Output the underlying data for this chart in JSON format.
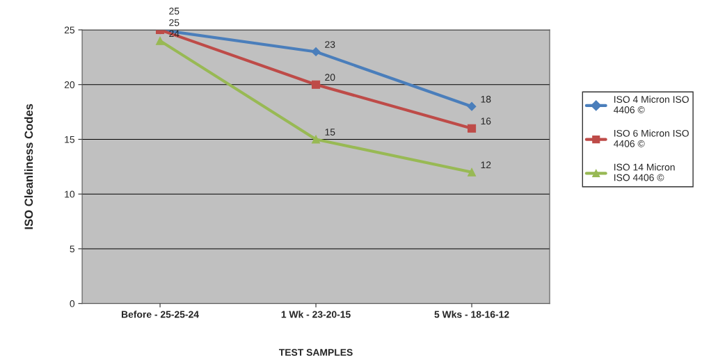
{
  "chart_data": {
    "type": "line",
    "xlabel": "TEST SAMPLES",
    "ylabel": "ISO Cleanliness Codes",
    "categories": [
      "Before - 25-25-24",
      "1 Wk - 23-20-15",
      "5 Wks - 18-16-12"
    ],
    "series": [
      {
        "name": "ISO 4 Micron ISO 4406 ©",
        "color": "#4a7ebb",
        "marker": "diamond",
        "values": [
          25,
          23,
          18
        ]
      },
      {
        "name": "ISO 6 Micron ISO 4406 ©",
        "color": "#be4b48",
        "marker": "square",
        "values": [
          25,
          20,
          16
        ]
      },
      {
        "name": "ISO 14 Micron ISO 4406 ©",
        "color": "#98b954",
        "marker": "triangle",
        "values": [
          24,
          15,
          12
        ]
      }
    ],
    "ylim": [
      0,
      25
    ],
    "yticks": [
      0,
      5,
      10,
      15,
      20,
      25
    ],
    "grid": "y",
    "legend": "right",
    "data_labels": true,
    "line_style": "solid"
  }
}
